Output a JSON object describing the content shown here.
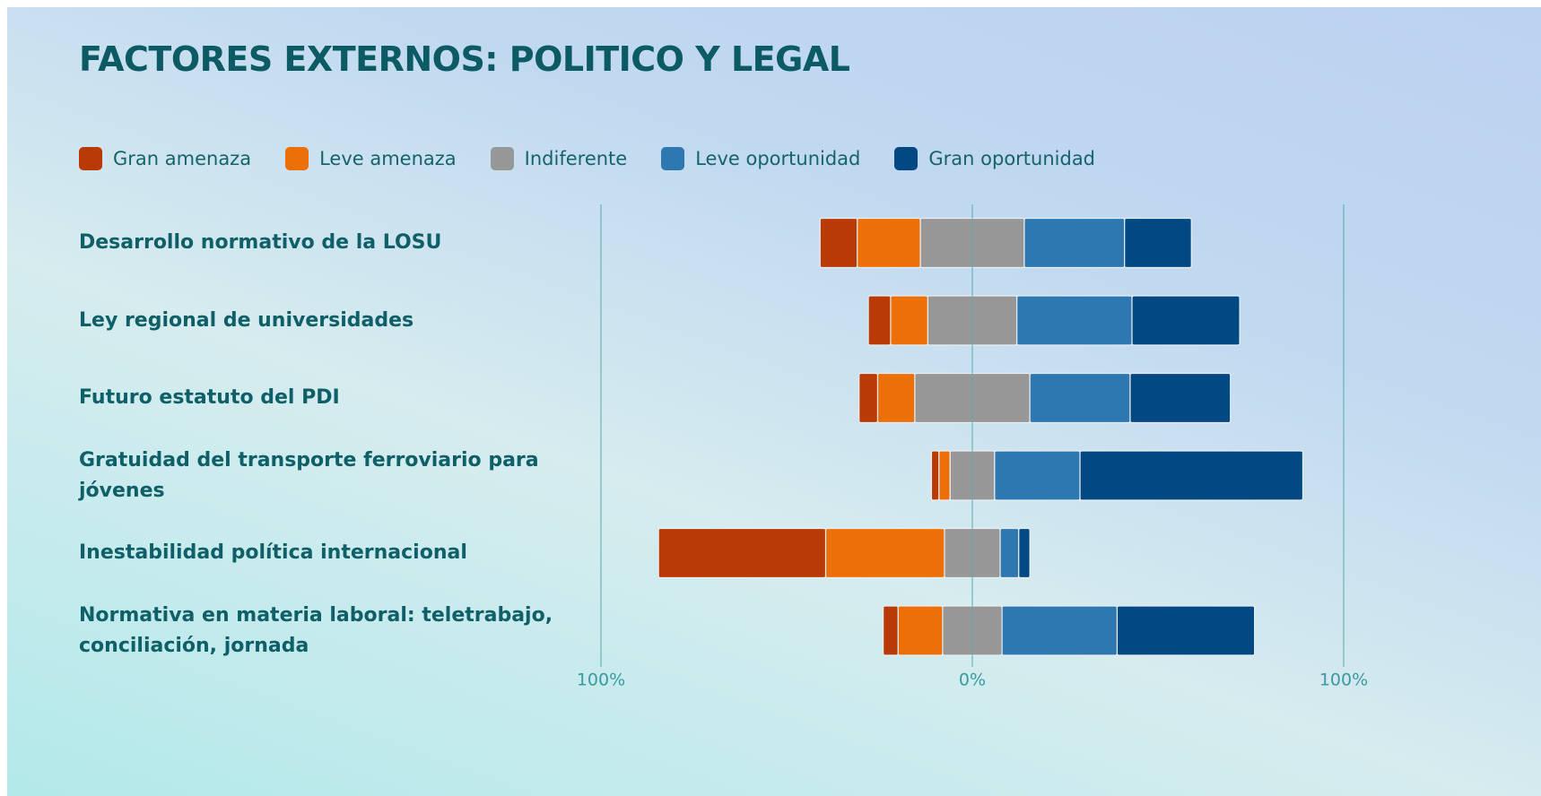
{
  "chart_data": {
    "type": "diverging_stacked_bar",
    "title": "FACTORES EXTERNOS: POLITICO Y LEGAL",
    "categories": [
      "Desarrollo normativo de la LOSU",
      "Ley regional de universidades",
      "Futuro estatuto del PDI",
      "Gratuidad del transporte ferroviario para jóvenes",
      "Inestabilidad política internacional",
      "Normativa en materia laboral: teletrabajo, conciliación, jornada"
    ],
    "series": [
      {
        "name": "Gran amenaza",
        "color": "#b83b05",
        "side": "negative",
        "values": [
          10,
          6,
          5,
          2,
          45,
          4
        ]
      },
      {
        "name": "Leve amenaza",
        "color": "#ec7007",
        "side": "negative",
        "values": [
          17,
          10,
          10,
          3,
          32,
          12
        ]
      },
      {
        "name": "Indiferente",
        "color": "#979797",
        "side": "neutral",
        "values": [
          28,
          24,
          31,
          12,
          15,
          16
        ]
      },
      {
        "name": "Leve oportunidad",
        "color": "#2e78b2",
        "side": "positive",
        "values": [
          27,
          31,
          27,
          23,
          5,
          31
        ]
      },
      {
        "name": "Gran oportunidad",
        "color": "#024882",
        "side": "positive",
        "values": [
          18,
          29,
          27,
          60,
          3,
          37
        ]
      }
    ],
    "xlim": [
      -100,
      100
    ],
    "xticks": [
      {
        "value": -100,
        "label": "100%"
      },
      {
        "value": 0,
        "label": "0%"
      },
      {
        "value": 100,
        "label": "100%"
      }
    ],
    "grid": true
  }
}
